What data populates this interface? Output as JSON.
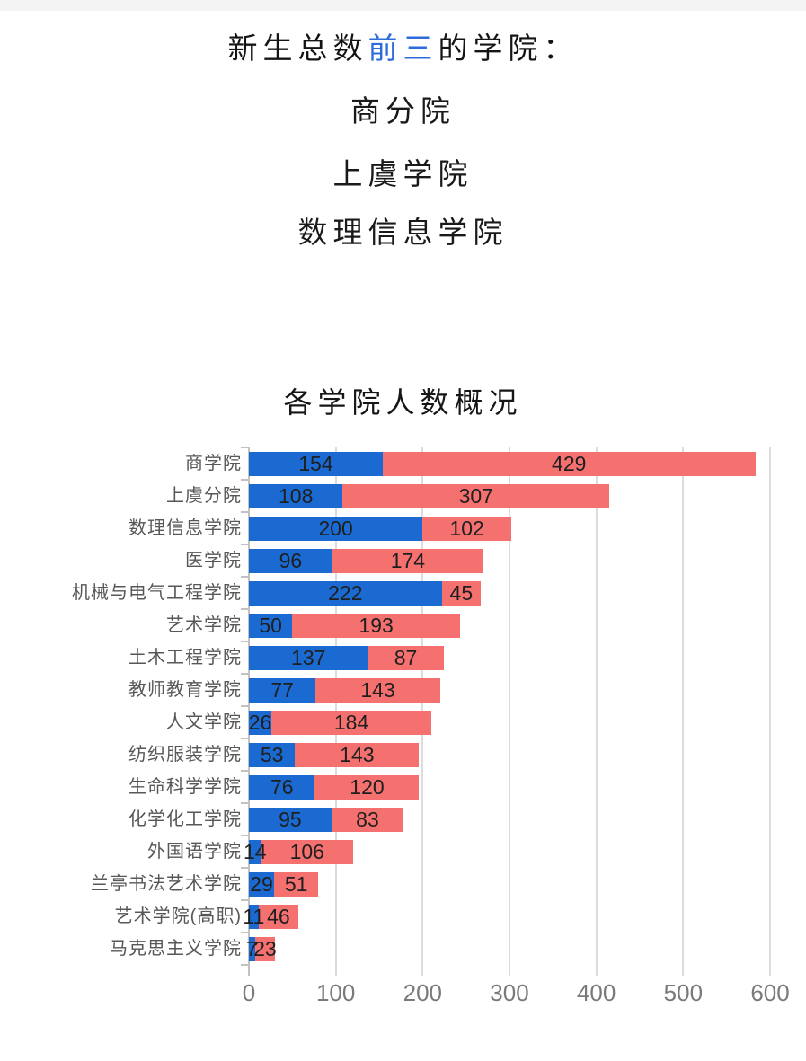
{
  "header": {
    "title_prefix": "新生总数",
    "title_highlight": "前三",
    "title_suffix": "的学院：",
    "highlight_color": "#2e6bdb",
    "top_colleges": [
      "商分院",
      "上虞学院",
      "数理信息学院"
    ]
  },
  "chart_data": {
    "type": "bar",
    "orientation": "horizontal",
    "stacked": true,
    "title": "各学院人数概况",
    "categories": [
      "商学院",
      "上虞分院",
      "数理信息学院",
      "医学院",
      "机械与电气工程学院",
      "艺术学院",
      "土木工程学院",
      "教师教育学院",
      "人文学院",
      "纺织服装学院",
      "生命科学学院",
      "化学化工学院",
      "外国语学院",
      "兰亭书法艺术学院",
      "艺术学院(高职)",
      "马克思主义学院"
    ],
    "series": [
      {
        "name": "blue-segment",
        "color": "#1a6ad1",
        "values": [
          154,
          108,
          200,
          96,
          222,
          50,
          137,
          77,
          26,
          53,
          76,
          95,
          14,
          29,
          11,
          7
        ]
      },
      {
        "name": "red-segment",
        "color": "#f57170",
        "values": [
          429,
          307,
          102,
          174,
          45,
          193,
          87,
          143,
          184,
          143,
          120,
          83,
          106,
          51,
          46,
          23
        ]
      }
    ],
    "x_ticks": [
      0,
      100,
      200,
      300,
      400,
      500,
      600
    ],
    "xlim": [
      0,
      600
    ],
    "grid": true,
    "legend": false,
    "value_labels": true,
    "colors": {
      "grid_line": "#dcdcdc",
      "axis_line": "#c2c2c2",
      "category_label": "#575757",
      "tick_label": "#7a7a7a",
      "value_label": "#1f1f1f"
    }
  }
}
